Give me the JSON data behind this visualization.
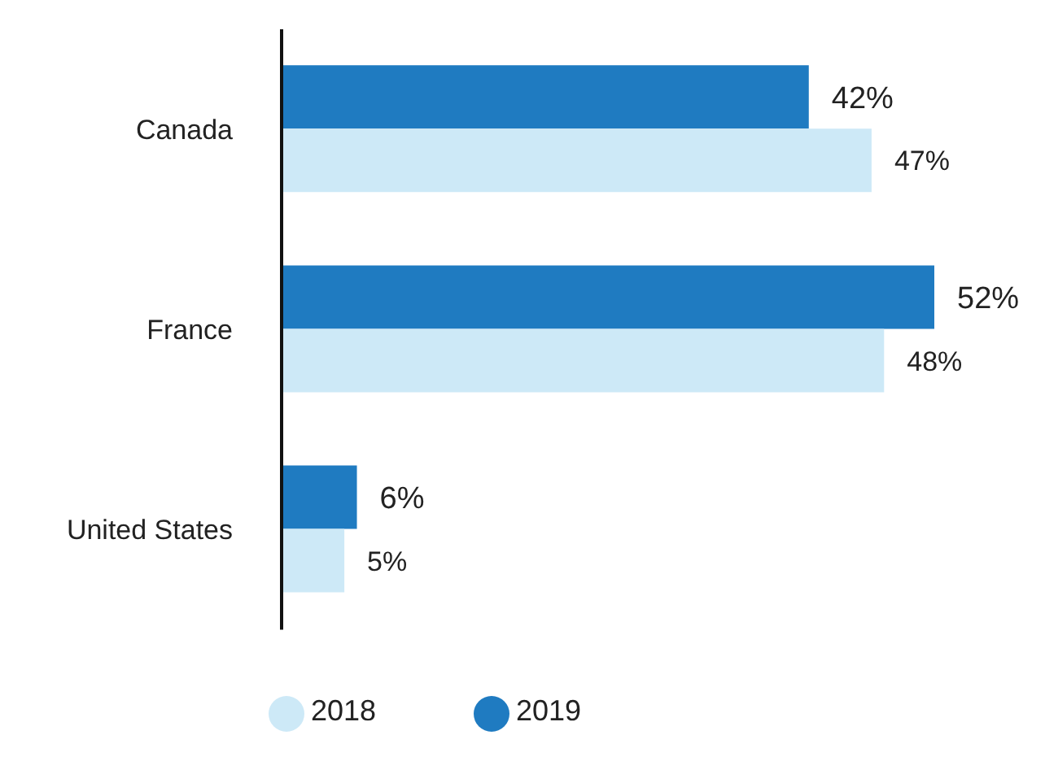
{
  "chart_data": {
    "type": "bar",
    "orientation": "horizontal",
    "categories": [
      "Canada",
      "France",
      "United States"
    ],
    "series": [
      {
        "name": "2019",
        "color": "#1f7bc1",
        "values": [
          42,
          52,
          6
        ],
        "value_labels": [
          "42%",
          "52%",
          "6%"
        ]
      },
      {
        "name": "2018",
        "color": "#cde9f7",
        "values": [
          47,
          48,
          5
        ],
        "value_labels": [
          "47%",
          "48%",
          "5%"
        ]
      }
    ],
    "legend": "bottom"
  }
}
